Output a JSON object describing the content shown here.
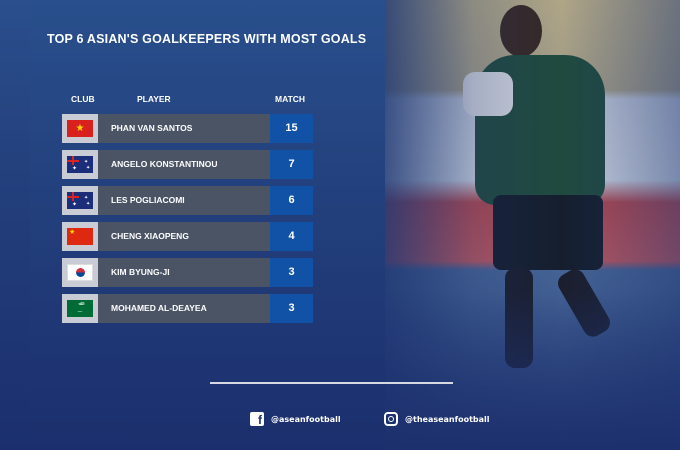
{
  "title": "TOP 6 ASIAN'S GOALKEEPERS WITH MOST GOALS",
  "headers": {
    "club": "CLUB",
    "player": "PLAYER",
    "match": "MATCH"
  },
  "rows": [
    {
      "flag": "vietnam-flag",
      "player": "PHAN VAN SANTOS",
      "match": "15"
    },
    {
      "flag": "australia-flag",
      "player": "ANGELO KONSTANTINOU",
      "match": "7"
    },
    {
      "flag": "australia-flag",
      "player": "LES POGLIACOMI",
      "match": "6"
    },
    {
      "flag": "china-flag",
      "player": "CHENG XIAOPENG",
      "match": "4"
    },
    {
      "flag": "south-korea-flag",
      "player": "KIM BYUNG-JI",
      "match": "3"
    },
    {
      "flag": "saudi-arabia-flag",
      "player": "MOHAMED AL-DEAYEA",
      "match": "3"
    }
  ],
  "social": {
    "facebook": "@aseanfootball",
    "instagram": "@theaseanfootball"
  },
  "colors": {
    "match_box": "#1252a6",
    "name_bar": "#4a5464",
    "background": "#1d3470"
  }
}
